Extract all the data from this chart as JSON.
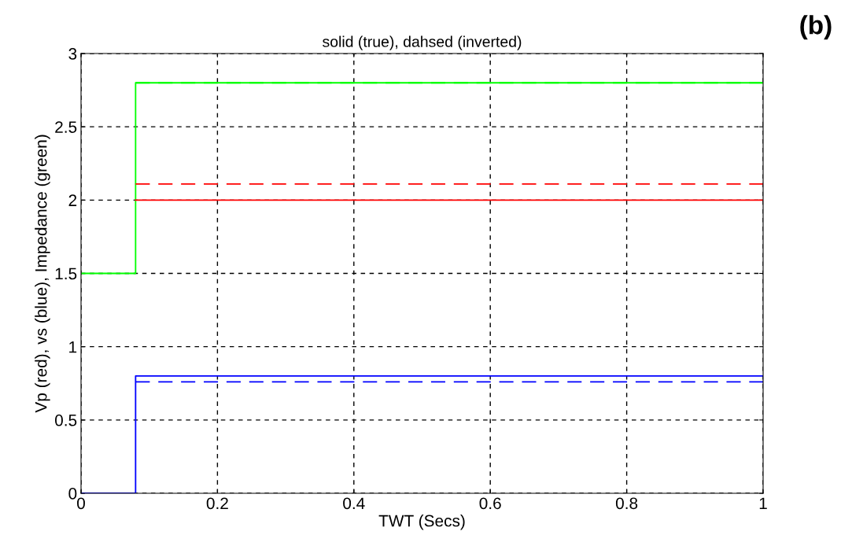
{
  "chart_data": {
    "type": "line",
    "title": "solid (true), dahsed (inverted)",
    "xlabel": "TWT (Secs)",
    "ylabel": "Vp (red), vs (blue), Impedance (green)",
    "annotations": [
      "(b)"
    ],
    "series": [
      {
        "color": "#00ff00",
        "line_style": "solid",
        "x": [
          0,
          0.08,
          0.08,
          1
        ],
        "values": [
          1.5,
          1.5,
          2.8,
          2.8
        ]
      },
      {
        "color": "#ff0000",
        "line_style": "solid",
        "x": [
          0.08,
          1
        ],
        "values": [
          2,
          2
        ]
      },
      {
        "color": "#0000ff",
        "line_style": "solid",
        "x": [
          0,
          0.08,
          0.08,
          1
        ],
        "values": [
          0,
          0,
          0.8,
          0.8
        ]
      },
      {
        "color": "#00ff00",
        "line_style": "dashed",
        "x": [
          0.08,
          1
        ],
        "values": [
          2.8,
          2.8
        ]
      },
      {
        "color": "#ff0000",
        "line_style": "dashed",
        "x": [
          0.08,
          1
        ],
        "values": [
          2.11,
          2.11
        ]
      },
      {
        "color": "#0000ff",
        "line_style": "dashed",
        "x": [
          0.08,
          1
        ],
        "values": [
          0.76,
          0.76
        ]
      }
    ],
    "xlim": [
      0,
      1
    ],
    "xticks": [
      0,
      0.2,
      0.4,
      0.6,
      0.8,
      1
    ],
    "ylim": [
      0,
      3
    ],
    "yticks": [
      0,
      0.5,
      1,
      1.5,
      2,
      2.5,
      3
    ],
    "grid": true,
    "marker": "none"
  }
}
